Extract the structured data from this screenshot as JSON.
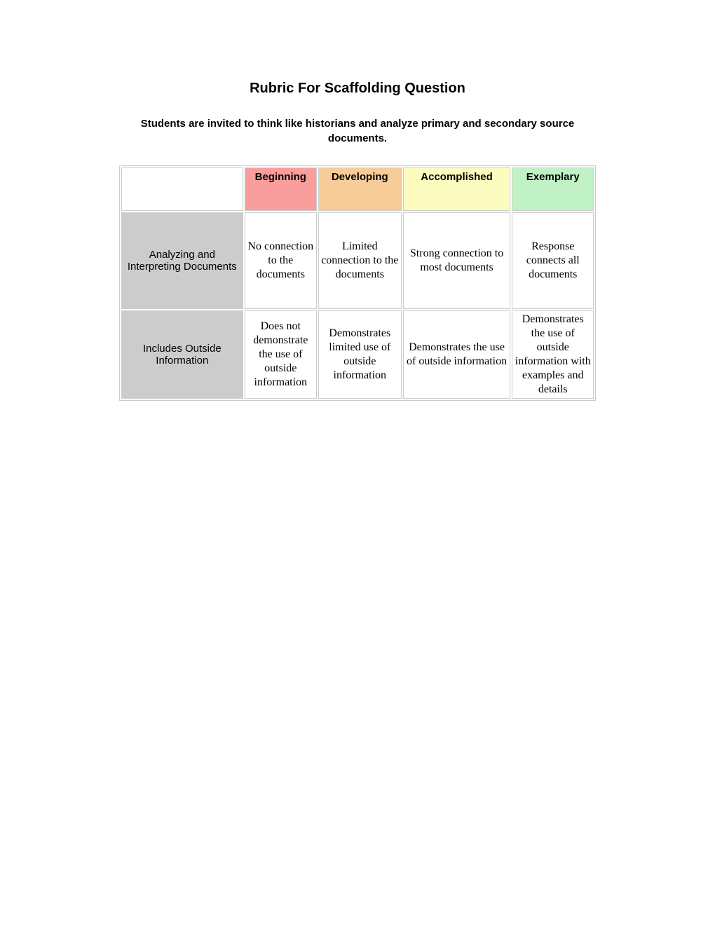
{
  "title": "Rubric For Scaffolding Question",
  "subtitle": "Students are invited to think like historians and analyze primary and secondary source documents.",
  "table": {
    "columns": [
      {
        "label": "Beginning",
        "bg_color": "#f99d9d"
      },
      {
        "label": "Developing",
        "bg_color": "#f8cc98"
      },
      {
        "label": "Accomplished",
        "bg_color": "#fdfcc0"
      },
      {
        "label": "Exemplary",
        "bg_color": "#c1f2c6"
      }
    ],
    "rows": [
      {
        "header": "Analyzing and Interpreting Documents",
        "cells": [
          "No connection to the documents",
          "Limited connection to the documents",
          "Strong connection to most documents",
          "Response connects all documents"
        ]
      },
      {
        "header": "Includes Outside Information",
        "cells": [
          "Does not demonstrate the use of outside information",
          "Demonstrates limited use of outside information",
          "Demonstrates the use of outside information",
          "Demonstrates the use of outside information with examples and details"
        ]
      }
    ],
    "row_header_bg": "#cccccc",
    "border_color": "#cccccc",
    "cell_bg": "#ffffff"
  }
}
